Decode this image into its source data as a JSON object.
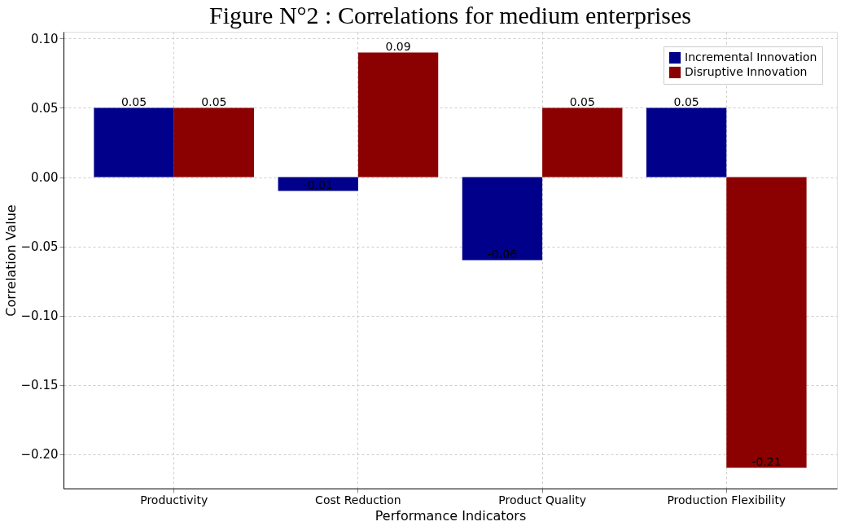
{
  "chart_data": {
    "type": "bar",
    "title": "Figure N°2 : Correlations for medium enterprises",
    "xlabel": "Performance Indicators",
    "ylabel": "Correlation Value",
    "categories": [
      "Productivity",
      "Cost Reduction",
      "Product Quality",
      "Production Flexibility"
    ],
    "series": [
      {
        "name": "Incremental Innovation",
        "color": "#00008b",
        "values": [
          0.05,
          -0.01,
          -0.06,
          0.05
        ]
      },
      {
        "name": "Disruptive Innovation",
        "color": "#8b0000",
        "values": [
          0.05,
          0.09,
          0.05,
          -0.21
        ]
      }
    ],
    "ylim": [
      -0.225,
      0.105
    ],
    "yticks": [
      {
        "value": -0.2,
        "label": "−0.20"
      },
      {
        "value": -0.15,
        "label": "−0.15"
      },
      {
        "value": -0.1,
        "label": "−0.10"
      },
      {
        "value": -0.05,
        "label": "−0.05"
      },
      {
        "value": 0,
        "label": "0.00"
      },
      {
        "value": 0.05,
        "label": "0.05"
      },
      {
        "value": 0.1,
        "label": "0.10"
      }
    ],
    "grid": true,
    "legend": "top right",
    "data_labels": true
  }
}
